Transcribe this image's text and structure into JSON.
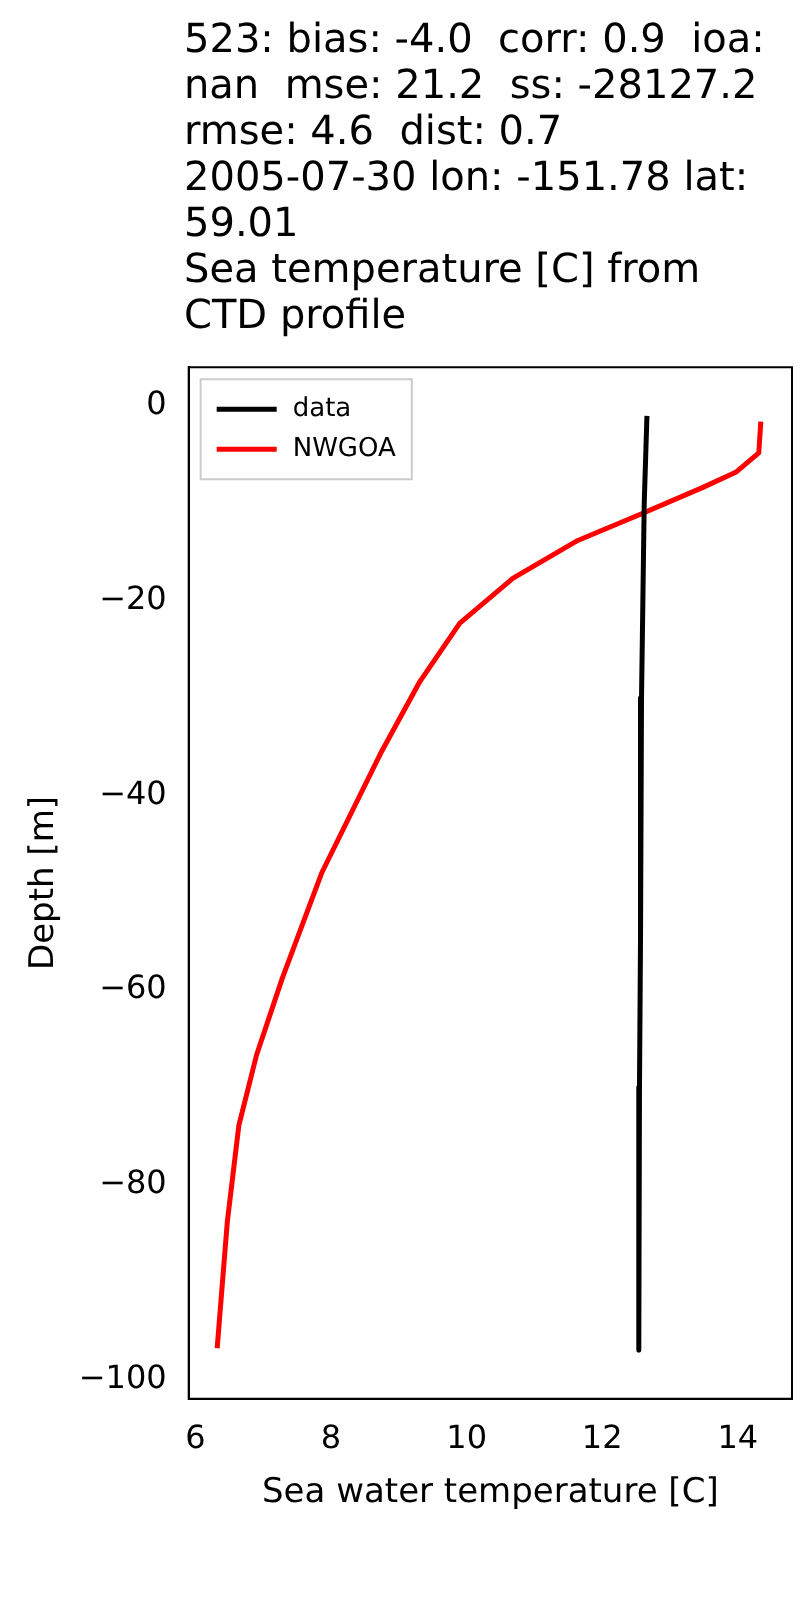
{
  "chart_data": {
    "type": "line",
    "title": "523: bias: -4.0  corr: 0.9  ioa: nan  mse: 21.2  ss: -28127.2  rmse: 4.6  dist: 0.7\n2005-07-30 lon: -151.78 lat: 59.01\nSea temperature [C] from CTD profile",
    "xlabel": "Sea water temperature [C]",
    "ylabel": "Depth [m]",
    "series": [
      {
        "name": "data",
        "color": "#000000",
        "x": [
          12.66,
          12.62,
          12.6,
          12.58,
          12.57,
          12.56,
          12.55,
          12.54,
          12.54
        ],
        "values": [
          -1,
          -10,
          -20,
          -30,
          -40,
          -55,
          -70,
          -85,
          -97
        ]
      },
      {
        "name": "NWGOA",
        "color": "#ff0000",
        "x": [
          14.34,
          14.31,
          13.97,
          13.47,
          12.6,
          11.64,
          10.68,
          9.9,
          9.31,
          8.73,
          7.86,
          7.28,
          6.9,
          6.64,
          6.47,
          6.32
        ],
        "values": [
          -1.6,
          -4.8,
          -6.8,
          -8.4,
          -11,
          -13.8,
          -17.7,
          -22.3,
          -28.3,
          -35.7,
          -48,
          -58.8,
          -66.7,
          -73.9,
          -83.8,
          -96.8
        ]
      }
    ],
    "xlim": [
      5.9,
      14.8
    ],
    "ylim": [
      -102,
      4
    ],
    "xticks": [
      6,
      8,
      10,
      12,
      14
    ],
    "yticks": [
      0,
      -20,
      -40,
      -60,
      -80,
      -100
    ],
    "grid": false,
    "legend": "top left"
  }
}
